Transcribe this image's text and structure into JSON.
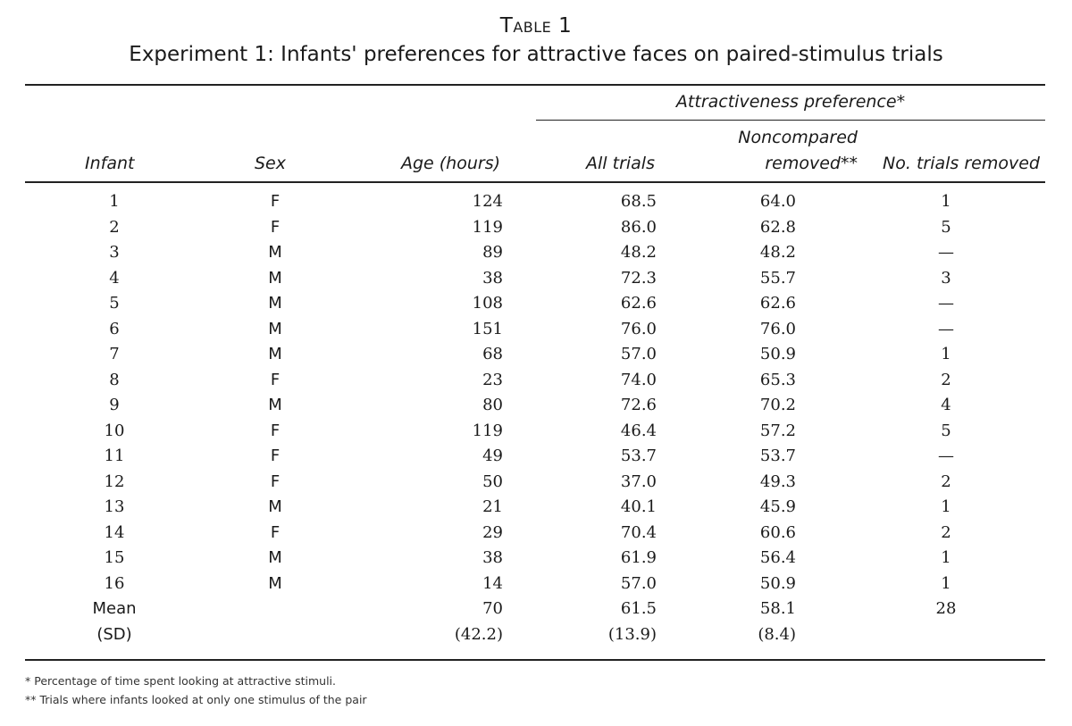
{
  "table_label": "Table 1",
  "table_title": "Experiment 1: Infants' preferences for attractive faces on paired-stimulus trials",
  "group_header": "Attractiveness preference*",
  "headers": {
    "infant": "Infant",
    "sex": "Sex",
    "age": "Age (hours)",
    "all_trials": "All trials",
    "noncompared_line1": "Noncompared",
    "noncompared_line2": "removed**",
    "trials_removed": "No. trials removed"
  },
  "rows": [
    {
      "infant": "1",
      "sex": "F",
      "age": "124",
      "all": "68.5",
      "noncomp": "64.0",
      "removed": "1"
    },
    {
      "infant": "2",
      "sex": "F",
      "age": "119",
      "all": "86.0",
      "noncomp": "62.8",
      "removed": "5"
    },
    {
      "infant": "3",
      "sex": "M",
      "age": "89",
      "all": "48.2",
      "noncomp": "48.2",
      "removed": "—"
    },
    {
      "infant": "4",
      "sex": "M",
      "age": "38",
      "all": "72.3",
      "noncomp": "55.7",
      "removed": "3"
    },
    {
      "infant": "5",
      "sex": "M",
      "age": "108",
      "all": "62.6",
      "noncomp": "62.6",
      "removed": "—"
    },
    {
      "infant": "6",
      "sex": "M",
      "age": "151",
      "all": "76.0",
      "noncomp": "76.0",
      "removed": "—"
    },
    {
      "infant": "7",
      "sex": "M",
      "age": "68",
      "all": "57.0",
      "noncomp": "50.9",
      "removed": "1"
    },
    {
      "infant": "8",
      "sex": "F",
      "age": "23",
      "all": "74.0",
      "noncomp": "65.3",
      "removed": "2"
    },
    {
      "infant": "9",
      "sex": "M",
      "age": "80",
      "all": "72.6",
      "noncomp": "70.2",
      "removed": "4"
    },
    {
      "infant": "10",
      "sex": "F",
      "age": "119",
      "all": "46.4",
      "noncomp": "57.2",
      "removed": "5"
    },
    {
      "infant": "11",
      "sex": "F",
      "age": "49",
      "all": "53.7",
      "noncomp": "53.7",
      "removed": "—"
    },
    {
      "infant": "12",
      "sex": "F",
      "age": "50",
      "all": "37.0",
      "noncomp": "49.3",
      "removed": "2"
    },
    {
      "infant": "13",
      "sex": "M",
      "age": "21",
      "all": "40.1",
      "noncomp": "45.9",
      "removed": "1"
    },
    {
      "infant": "14",
      "sex": "F",
      "age": "29",
      "all": "70.4",
      "noncomp": "60.6",
      "removed": "2"
    },
    {
      "infant": "15",
      "sex": "M",
      "age": "38",
      "all": "61.9",
      "noncomp": "56.4",
      "removed": "1"
    },
    {
      "infant": "16",
      "sex": "M",
      "age": "14",
      "all": "57.0",
      "noncomp": "50.9",
      "removed": "1"
    }
  ],
  "mean_row": {
    "label": "Mean",
    "age": "70",
    "all": "61.5",
    "noncomp": "58.1",
    "removed": "28"
  },
  "sd_row": {
    "label": "(SD)",
    "age": "(42.2)",
    "all": "(13.9)",
    "noncomp": "(8.4)"
  },
  "footnotes": [
    "* Percentage of time spent looking at attractive stimuli.",
    "** Trials where infants looked at only one stimulus of the pair"
  ]
}
